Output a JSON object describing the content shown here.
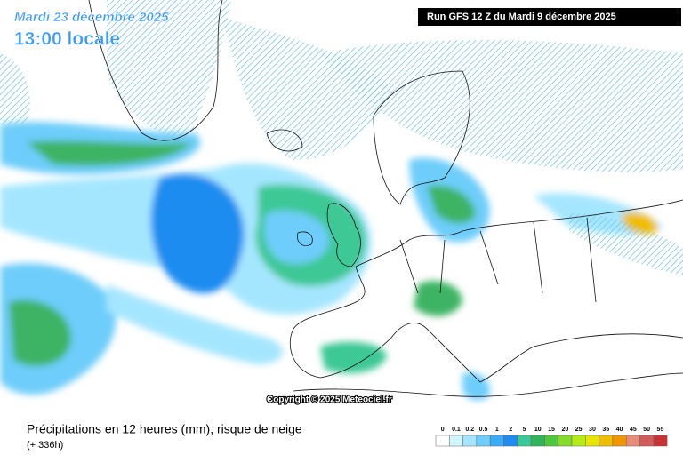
{
  "header": {
    "date": "Mardi 23 décembre 2025",
    "time": "13:00 locale",
    "run": "Run GFS 12 Z du Mardi 9 décembre 2025"
  },
  "copyright": "Copyright © 2025 Meteociel.fr",
  "footer": {
    "title": "Précipitations en 12 heures (mm), risque de neige",
    "lead": "(+ 336h)"
  },
  "legend": {
    "labels": [
      "0",
      "0.1",
      "0.2",
      "0.5",
      "1",
      "2",
      "5",
      "10",
      "15",
      "20",
      "25",
      "30",
      "35",
      "40",
      "45",
      "50",
      "55"
    ],
    "colors": [
      "#ffffff",
      "#d2f5ff",
      "#a5e6ff",
      "#6ecdfa",
      "#3cabf5",
      "#1e8cf0",
      "#3cc896",
      "#32b45a",
      "#50c83c",
      "#82dc28",
      "#b4ec14",
      "#e6e600",
      "#f0be00",
      "#f09600",
      "#e68c78",
      "#d25a5a",
      "#c83232"
    ]
  }
}
